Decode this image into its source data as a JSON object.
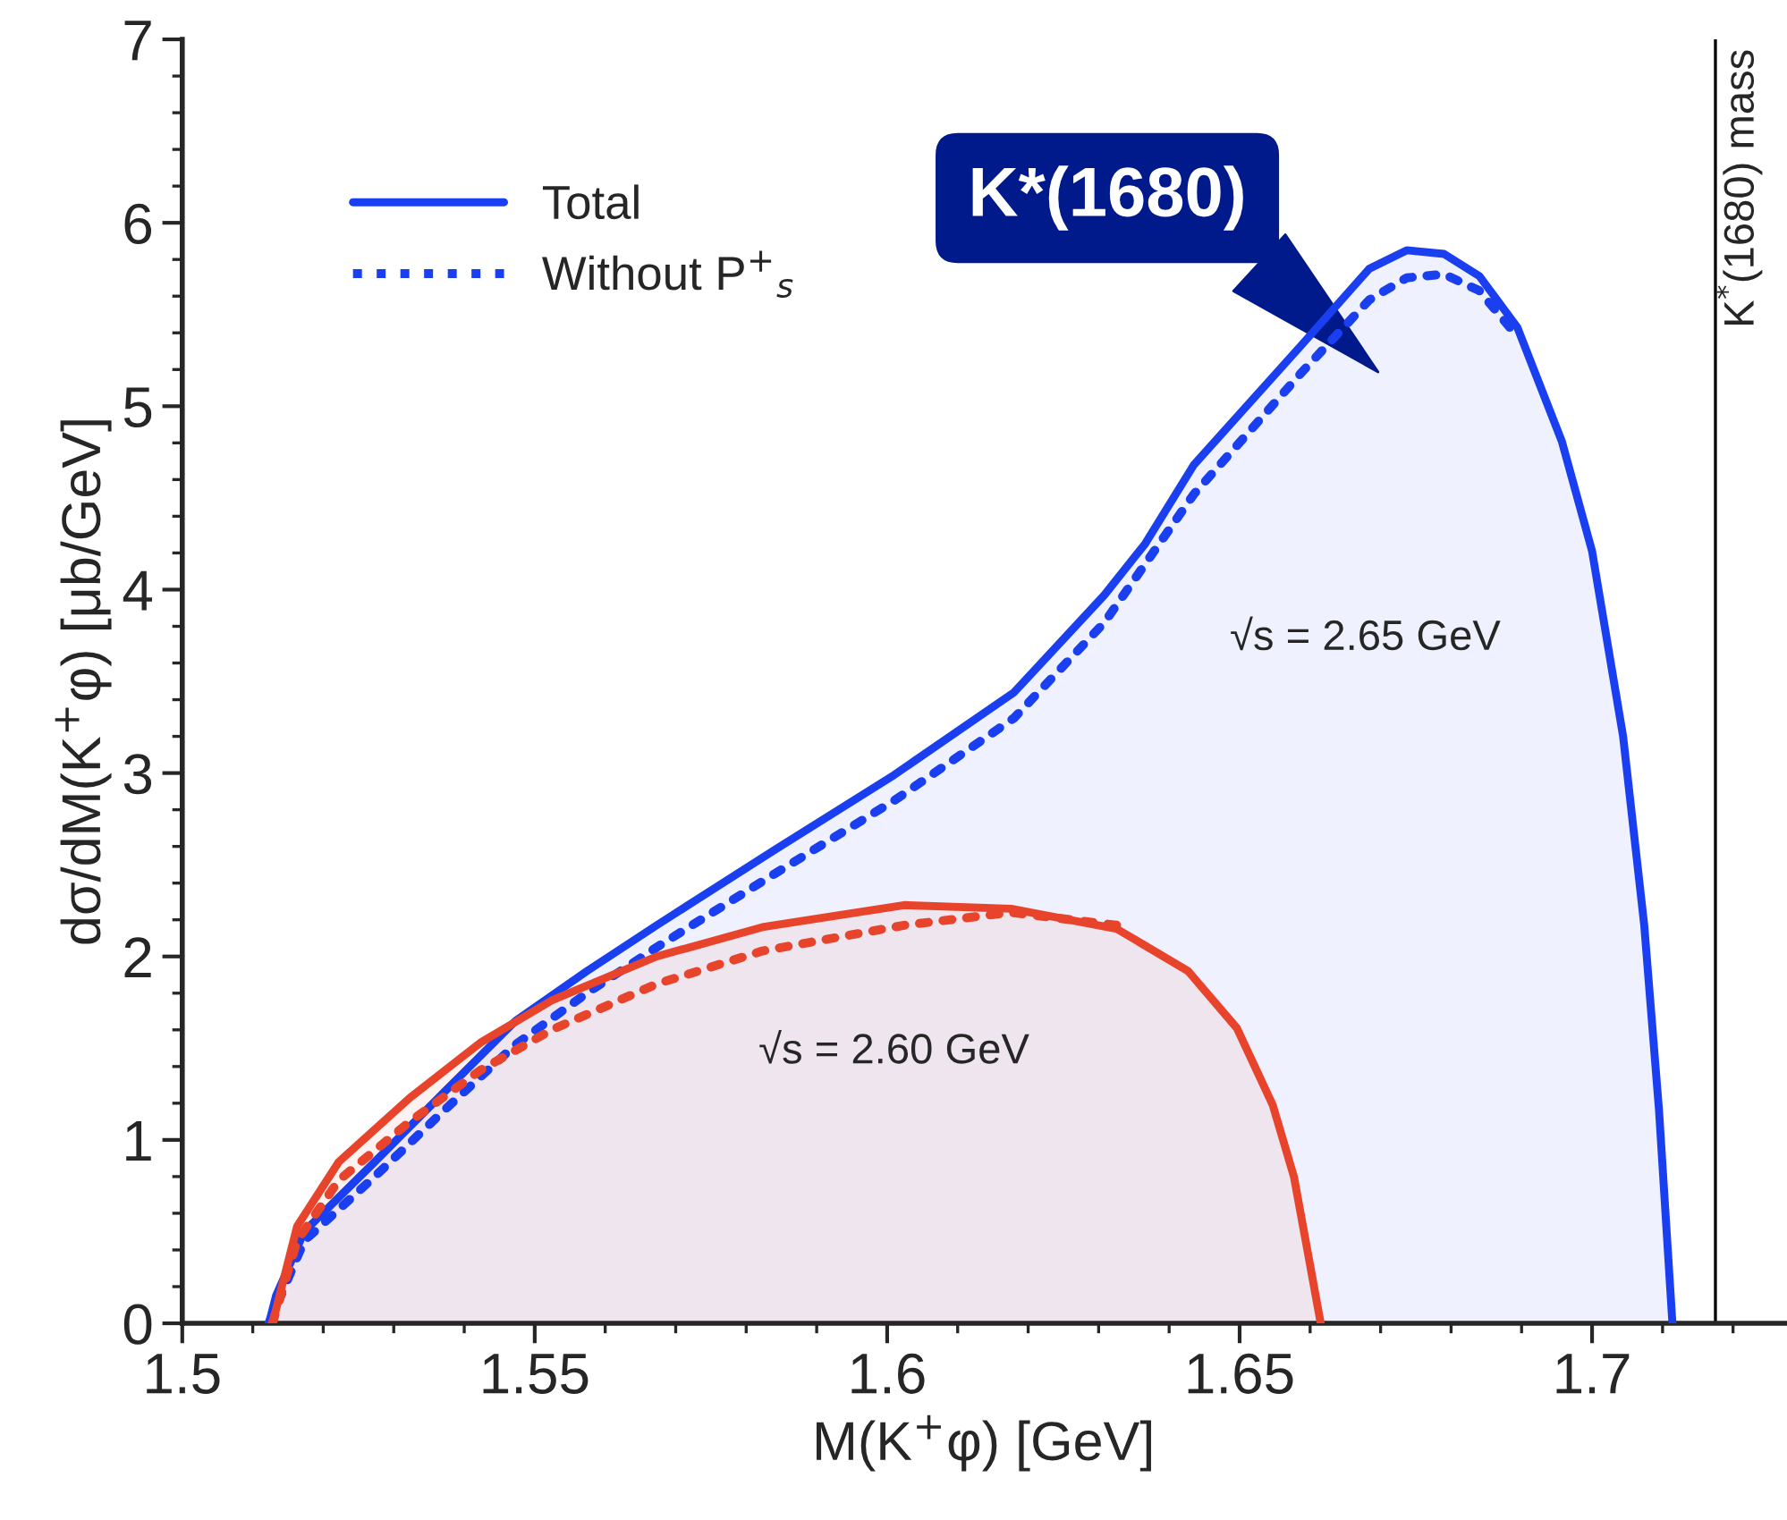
{
  "chart_data": {
    "type": "line",
    "xlabel": "M(K$^{+}$φ) [GeV]",
    "ylabel": "dσ/dM(K$^{+}$φ) [μb/GeV]",
    "xlim": [
      1.5,
      1.7274
    ],
    "ylim": [
      0,
      7
    ],
    "xticks": [
      {
        "value": 1.5,
        "label": "1.5"
      },
      {
        "value": 1.55,
        "label": "1.55"
      },
      {
        "value": 1.6,
        "label": "1.6"
      },
      {
        "value": 1.65,
        "label": "1.65"
      },
      {
        "value": 1.7,
        "label": "1.7"
      }
    ],
    "yticks": [
      0,
      1,
      2,
      3,
      4,
      5,
      6,
      7
    ],
    "grid": false,
    "legend": "top left",
    "series": [
      {
        "name": "Total",
        "type": "area",
        "color": "#1a3ff0",
        "line_style": "solid",
        "x": [
          1.5123,
          1.5133,
          1.5173,
          1.5273,
          1.5374,
          1.5473,
          1.5574,
          1.5673,
          1.584,
          1.601,
          1.618,
          1.6308,
          1.6366,
          1.6435,
          1.6587,
          1.6684,
          1.6737,
          1.679,
          1.684,
          1.6894,
          1.6957,
          1.7,
          1.7044,
          1.7074,
          1.7095,
          1.7114
        ],
        "values": [
          0,
          0.15,
          0.5,
          0.88,
          1.27,
          1.65,
          1.92,
          2.17,
          2.58,
          2.99,
          3.44,
          3.97,
          4.25,
          4.68,
          5.33,
          5.75,
          5.85,
          5.83,
          5.71,
          5.43,
          4.81,
          4.21,
          3.2,
          2.17,
          1.16,
          0
        ]
      },
      {
        "name": "Without P$^{+}$$_{s}$",
        "color": "#1a3ff0",
        "line_style": "dotted",
        "x": [
          1.5123,
          1.5173,
          1.5273,
          1.5374,
          1.5473,
          1.5574,
          1.5673,
          1.584,
          1.601,
          1.618,
          1.6308,
          1.6435,
          1.6587,
          1.6684,
          1.6737,
          1.679,
          1.684,
          1.6894
        ],
        "values": [
          0,
          0.45,
          0.8,
          1.17,
          1.52,
          1.8,
          2.05,
          2.45,
          2.85,
          3.3,
          3.82,
          4.52,
          5.18,
          5.58,
          5.7,
          5.72,
          5.63,
          5.38
        ]
      },
      {
        "type": "area",
        "color": "#e8442c",
        "line_style": "solid",
        "x": [
          1.5128,
          1.5163,
          1.5222,
          1.5323,
          1.5423,
          1.5524,
          1.5673,
          1.5823,
          1.6024,
          1.6176,
          1.6326,
          1.6427,
          1.6496,
          1.6547,
          1.6577,
          1.6597,
          1.6615
        ],
        "values": [
          0,
          0.53,
          0.88,
          1.23,
          1.53,
          1.76,
          2.0,
          2.16,
          2.28,
          2.26,
          2.15,
          1.92,
          1.61,
          1.19,
          0.8,
          0.38,
          0
        ]
      },
      {
        "color": "#e8442c",
        "line_style": "dotted",
        "x": [
          1.5128,
          1.5163,
          1.5222,
          1.5323,
          1.5423,
          1.5524,
          1.5673,
          1.5823,
          1.6024,
          1.6176,
          1.6326
        ],
        "values": [
          0,
          0.45,
          0.78,
          1.1,
          1.38,
          1.6,
          1.85,
          2.03,
          2.17,
          2.24,
          2.17
        ]
      }
    ],
    "ref_lines": [
      {
        "axis": "x",
        "value": 1.7175,
        "label": "K$^{*}$(1680) mass",
        "color": "#000000"
      }
    ],
    "annotations": [
      "K*(1680)",
      "√s = 2.65 GeV",
      "√s = 2.60 GeV"
    ]
  }
}
